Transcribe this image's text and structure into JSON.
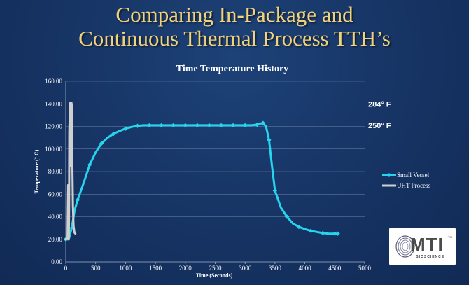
{
  "slide": {
    "title_line1": "Comparing In-Package and",
    "title_line2": "Continuous Thermal Process TTH’s"
  },
  "logo": {
    "text": "MTI",
    "subtext": "BIOSCIENCE",
    "tm": "TM"
  },
  "colors": {
    "small_vessel": "#27d4ee",
    "uht_process": "#cfcfcf",
    "axis": "#9fb2cc",
    "grid": "#6f86a8"
  },
  "chart_data": {
    "type": "line",
    "title": "Time Temperature History",
    "xlabel": "Time (Seconds)",
    "ylabel": "Temperature (° C)",
    "xlim": [
      0,
      5000
    ],
    "ylim": [
      0,
      160
    ],
    "xticks": [
      0,
      500,
      1000,
      1500,
      2000,
      2500,
      3000,
      3500,
      4000,
      4500,
      5000
    ],
    "yticks": [
      "0.00",
      "20.00",
      "40.00",
      "60.00",
      "80.00",
      "100.00",
      "120.00",
      "140.00",
      "160.00"
    ],
    "grid": "horizontal",
    "legend_position": "right",
    "annotations": [
      "284°  F",
      "250°  F"
    ],
    "annotation_values": [
      140,
      121
    ],
    "series": [
      {
        "name": "Small Vessel",
        "x": [
          0,
          50,
          100,
          150,
          200,
          300,
          400,
          500,
          600,
          700,
          800,
          900,
          1000,
          1100,
          1200,
          1300,
          1400,
          1500,
          1600,
          1700,
          1800,
          1900,
          2000,
          2100,
          2200,
          2300,
          2400,
          2500,
          2600,
          2700,
          2800,
          2900,
          3000,
          3100,
          3200,
          3250,
          3300,
          3350,
          3400,
          3450,
          3500,
          3600,
          3700,
          3800,
          3900,
          4000,
          4100,
          4200,
          4300,
          4400,
          4500,
          4550
        ],
        "y": [
          20,
          20,
          30,
          46,
          55,
          70,
          86,
          97,
          105,
          110,
          113.5,
          116,
          118,
          119.5,
          120.5,
          121,
          121,
          121,
          121,
          121,
          121,
          121,
          121,
          121,
          121,
          121,
          121,
          121,
          121,
          121,
          121,
          121,
          121,
          121,
          121.5,
          122.5,
          123,
          120,
          108,
          85,
          63,
          48,
          40,
          34,
          31,
          29,
          27.5,
          26.5,
          25.5,
          25,
          25,
          25
        ]
      },
      {
        "name": "UHT Process",
        "x": [
          0,
          15,
          30,
          40,
          50,
          55,
          60,
          70,
          75,
          80,
          85,
          90,
          95,
          100,
          110,
          120,
          130,
          145,
          160
        ],
        "y": [
          20,
          20,
          22,
          68,
          20,
          45,
          115,
          136,
          141,
          140,
          85,
          140,
          141,
          139,
          88,
          50,
          32,
          26,
          25
        ]
      }
    ]
  }
}
